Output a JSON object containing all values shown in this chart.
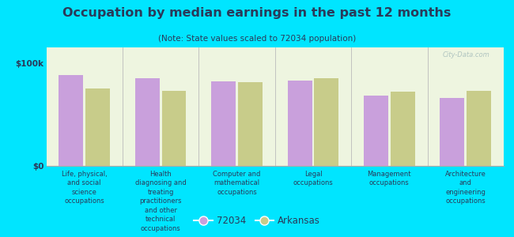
{
  "title": "Occupation by median earnings in the past 12 months",
  "subtitle": "(Note: State values scaled to 72034 population)",
  "categories": [
    "Life, physical,\nand social\nscience\noccupations",
    "Health\ndiagnosing and\ntreating\npractitioners\nand other\ntechnical\noccupations",
    "Computer and\nmathematical\noccupations",
    "Legal\noccupations",
    "Management\noccupations",
    "Architecture\nand\nengineering\noccupations"
  ],
  "values_72034": [
    88000,
    85000,
    82000,
    83000,
    68000,
    66000
  ],
  "values_arkansas": [
    75000,
    73000,
    81000,
    85000,
    72000,
    73000
  ],
  "color_72034": "#c9a0dc",
  "color_arkansas": "#c8cc8a",
  "background_outer": "#00e5ff",
  "background_inner": "#eef5e0",
  "ylabel_ticks": [
    0,
    100000
  ],
  "ylabel_labels": [
    "$0",
    "$100k"
  ],
  "ylim": [
    0,
    115000
  ],
  "legend_label_72034": "72034",
  "legend_label_arkansas": "Arkansas",
  "text_color": "#2a3a5a",
  "watermark": "City-Data.com",
  "bar_width": 0.32,
  "bar_gap": 0.03
}
